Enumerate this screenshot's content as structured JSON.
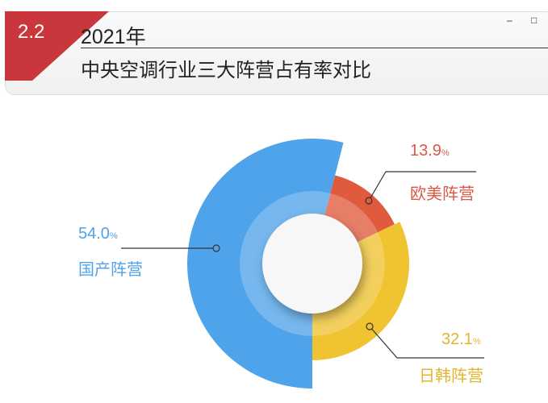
{
  "header": {
    "section": "2.2",
    "year": "2021年",
    "subtitle": "中央空调行业三大阵营占有率对比",
    "minimize": "–",
    "maximize": "□"
  },
  "chart_data": {
    "type": "pie",
    "variant": "rose-donut",
    "title": "中央空调行业三大阵营占有率对比",
    "unit": "%",
    "categories": [
      "国产阵营",
      "欧美阵营",
      "日韩阵营"
    ],
    "values": [
      54.0,
      13.9,
      32.1
    ],
    "colors": [
      "#4fa3ea",
      "#e05a3e",
      "#f0c330"
    ],
    "labels": [
      {
        "value": "54.0",
        "unit": "%",
        "name": "国产阵营",
        "color": "#4fa3ea"
      },
      {
        "value": "13.9",
        "unit": "%",
        "name": "欧美阵营",
        "color": "#d95a48"
      },
      {
        "value": "32.1",
        "unit": "%",
        "name": "日韩阵营",
        "color": "#e2b530"
      }
    ]
  }
}
